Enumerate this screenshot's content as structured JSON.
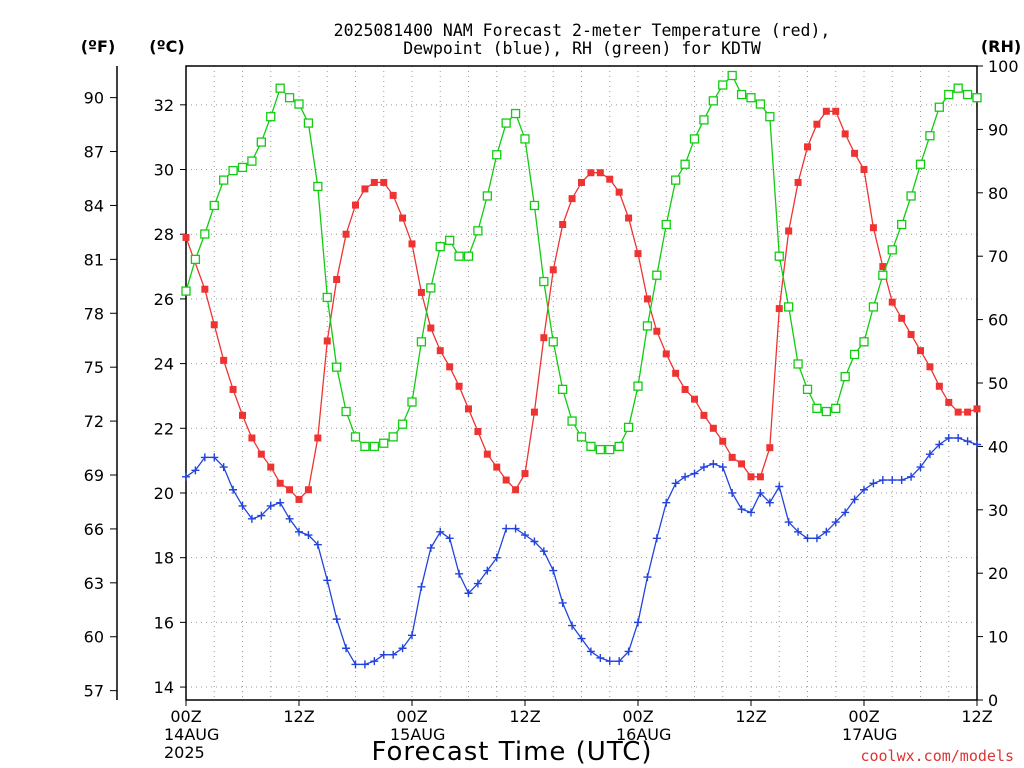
{
  "chart_data": {
    "type": "line",
    "title": "2025081400 NAM Forecast 2-meter Temperature (red),",
    "subtitle": "Dewpoint (blue), RH (green) for KDTW",
    "xlabel": "Forecast Time (UTC)",
    "watermark": "coolwx.com/models",
    "axis_units": {
      "f": "(ºF)",
      "c": "(ºC)",
      "rh": "(RH)"
    },
    "x_hours_range": [
      0,
      84
    ],
    "y_c_range": [
      13.6,
      33.2
    ],
    "y_rh_range": [
      0,
      100
    ],
    "grid": true,
    "x_ticks": [
      {
        "h": 0,
        "labels": [
          "00Z",
          "14AUG",
          "2025"
        ]
      },
      {
        "h": 12,
        "labels": [
          "12Z"
        ]
      },
      {
        "h": 24,
        "labels": [
          "00Z",
          "15AUG"
        ]
      },
      {
        "h": 36,
        "labels": [
          "12Z"
        ]
      },
      {
        "h": 48,
        "labels": [
          "00Z",
          "16AUG"
        ]
      },
      {
        "h": 60,
        "labels": [
          "12Z"
        ]
      },
      {
        "h": 72,
        "labels": [
          "00Z",
          "17AUG"
        ]
      },
      {
        "h": 84,
        "labels": [
          "12Z"
        ]
      }
    ],
    "c_ticks": [
      "14",
      "16",
      "18",
      "20",
      "22",
      "24",
      "26",
      "28",
      "30",
      "32"
    ],
    "f_ticks": [
      "57",
      "60",
      "63",
      "66",
      "69",
      "72",
      "75",
      "78",
      "81",
      "84",
      "87",
      "90"
    ],
    "rh_ticks": [
      "0",
      "10",
      "20",
      "30",
      "40",
      "50",
      "60",
      "70",
      "80",
      "90",
      "100"
    ],
    "series": [
      {
        "name": "Temperature",
        "unit": "C",
        "color": "#ee3333",
        "marker": "filled-square",
        "points": [
          [
            0,
            27.9
          ],
          [
            2,
            26.3
          ],
          [
            3,
            25.2
          ],
          [
            4,
            24.1
          ],
          [
            5,
            23.2
          ],
          [
            6,
            22.4
          ],
          [
            7,
            21.7
          ],
          [
            8,
            21.2
          ],
          [
            9,
            20.8
          ],
          [
            10,
            20.3
          ],
          [
            11,
            20.1
          ],
          [
            12,
            19.8
          ],
          [
            13,
            20.1
          ],
          [
            14,
            21.7
          ],
          [
            15,
            24.7
          ],
          [
            16,
            26.6
          ],
          [
            17,
            28.0
          ],
          [
            18,
            28.9
          ],
          [
            19,
            29.4
          ],
          [
            20,
            29.6
          ],
          [
            21,
            29.6
          ],
          [
            22,
            29.2
          ],
          [
            23,
            28.5
          ],
          [
            24,
            27.7
          ],
          [
            25,
            26.2
          ],
          [
            26,
            25.1
          ],
          [
            27,
            24.4
          ],
          [
            28,
            23.9
          ],
          [
            29,
            23.3
          ],
          [
            30,
            22.6
          ],
          [
            31,
            21.9
          ],
          [
            32,
            21.2
          ],
          [
            33,
            20.8
          ],
          [
            34,
            20.4
          ],
          [
            35,
            20.1
          ],
          [
            36,
            20.6
          ],
          [
            37,
            22.5
          ],
          [
            38,
            24.8
          ],
          [
            39,
            26.9
          ],
          [
            40,
            28.3
          ],
          [
            41,
            29.1
          ],
          [
            42,
            29.6
          ],
          [
            43,
            29.9
          ],
          [
            44,
            29.9
          ],
          [
            45,
            29.7
          ],
          [
            46,
            29.3
          ],
          [
            47,
            28.5
          ],
          [
            48,
            27.4
          ],
          [
            49,
            26.0
          ],
          [
            50,
            25.0
          ],
          [
            51,
            24.3
          ],
          [
            52,
            23.7
          ],
          [
            53,
            23.2
          ],
          [
            54,
            22.9
          ],
          [
            55,
            22.4
          ],
          [
            56,
            22.0
          ],
          [
            57,
            21.6
          ],
          [
            58,
            21.1
          ],
          [
            59,
            20.9
          ],
          [
            60,
            20.5
          ],
          [
            61,
            20.5
          ],
          [
            62,
            21.4
          ],
          [
            63,
            25.7
          ],
          [
            64,
            28.1
          ],
          [
            65,
            29.6
          ],
          [
            66,
            30.7
          ],
          [
            67,
            31.4
          ],
          [
            68,
            31.8
          ],
          [
            69,
            31.8
          ],
          [
            70,
            31.1
          ],
          [
            71,
            30.5
          ],
          [
            72,
            30.0
          ],
          [
            73,
            28.2
          ],
          [
            74,
            27.0
          ],
          [
            75,
            25.9
          ],
          [
            76,
            25.4
          ],
          [
            77,
            24.9
          ],
          [
            78,
            24.4
          ],
          [
            79,
            23.9
          ],
          [
            80,
            23.3
          ],
          [
            81,
            22.8
          ],
          [
            82,
            22.5
          ],
          [
            83,
            22.5
          ],
          [
            84,
            22.6
          ]
        ]
      },
      {
        "name": "Dewpoint",
        "unit": "C",
        "color": "#2244dd",
        "marker": "plus",
        "points": [
          [
            0,
            20.5
          ],
          [
            1,
            20.7
          ],
          [
            2,
            21.1
          ],
          [
            3,
            21.1
          ],
          [
            4,
            20.8
          ],
          [
            5,
            20.1
          ],
          [
            6,
            19.6
          ],
          [
            7,
            19.2
          ],
          [
            8,
            19.3
          ],
          [
            9,
            19.6
          ],
          [
            10,
            19.7
          ],
          [
            11,
            19.2
          ],
          [
            12,
            18.8
          ],
          [
            13,
            18.7
          ],
          [
            14,
            18.4
          ],
          [
            15,
            17.3
          ],
          [
            16,
            16.1
          ],
          [
            17,
            15.2
          ],
          [
            18,
            14.7
          ],
          [
            19,
            14.7
          ],
          [
            20,
            14.8
          ],
          [
            21,
            15.0
          ],
          [
            22,
            15.0
          ],
          [
            23,
            15.2
          ],
          [
            24,
            15.6
          ],
          [
            25,
            17.1
          ],
          [
            26,
            18.3
          ],
          [
            27,
            18.8
          ],
          [
            28,
            18.6
          ],
          [
            29,
            17.5
          ],
          [
            30,
            16.9
          ],
          [
            31,
            17.2
          ],
          [
            32,
            17.6
          ],
          [
            33,
            18.0
          ],
          [
            34,
            18.9
          ],
          [
            35,
            18.9
          ],
          [
            36,
            18.7
          ],
          [
            37,
            18.5
          ],
          [
            38,
            18.2
          ],
          [
            39,
            17.6
          ],
          [
            40,
            16.6
          ],
          [
            41,
            15.9
          ],
          [
            42,
            15.5
          ],
          [
            43,
            15.1
          ],
          [
            44,
            14.9
          ],
          [
            45,
            14.8
          ],
          [
            46,
            14.8
          ],
          [
            47,
            15.1
          ],
          [
            48,
            16.0
          ],
          [
            49,
            17.4
          ],
          [
            50,
            18.6
          ],
          [
            51,
            19.7
          ],
          [
            52,
            20.3
          ],
          [
            53,
            20.5
          ],
          [
            54,
            20.6
          ],
          [
            55,
            20.8
          ],
          [
            56,
            20.9
          ],
          [
            57,
            20.8
          ],
          [
            58,
            20.0
          ],
          [
            59,
            19.5
          ],
          [
            60,
            19.4
          ],
          [
            61,
            20.0
          ],
          [
            62,
            19.7
          ],
          [
            63,
            20.2
          ],
          [
            64,
            19.1
          ],
          [
            65,
            18.8
          ],
          [
            66,
            18.6
          ],
          [
            67,
            18.6
          ],
          [
            68,
            18.8
          ],
          [
            69,
            19.1
          ],
          [
            70,
            19.4
          ],
          [
            71,
            19.8
          ],
          [
            72,
            20.1
          ],
          [
            73,
            20.3
          ],
          [
            74,
            20.4
          ],
          [
            75,
            20.4
          ],
          [
            76,
            20.4
          ],
          [
            77,
            20.5
          ],
          [
            78,
            20.8
          ],
          [
            79,
            21.2
          ],
          [
            80,
            21.5
          ],
          [
            81,
            21.7
          ],
          [
            82,
            21.7
          ],
          [
            83,
            21.6
          ],
          [
            84,
            21.5
          ]
        ]
      },
      {
        "name": "RH",
        "unit": "%",
        "color": "#11cc11",
        "marker": "open-square",
        "points": [
          [
            0,
            64.5
          ],
          [
            1,
            69.5
          ],
          [
            2,
            73.5
          ],
          [
            3,
            78
          ],
          [
            4,
            82
          ],
          [
            5,
            83.5
          ],
          [
            6,
            84
          ],
          [
            7,
            85
          ],
          [
            8,
            88
          ],
          [
            9,
            92
          ],
          [
            10,
            96.5
          ],
          [
            11,
            95
          ],
          [
            12,
            94
          ],
          [
            13,
            91
          ],
          [
            14,
            81
          ],
          [
            15,
            63.5
          ],
          [
            16,
            52.5
          ],
          [
            17,
            45.5
          ],
          [
            18,
            41.5
          ],
          [
            19,
            40
          ],
          [
            20,
            40
          ],
          [
            21,
            40.5
          ],
          [
            22,
            41.5
          ],
          [
            23,
            43.5
          ],
          [
            24,
            47
          ],
          [
            25,
            56.5
          ],
          [
            26,
            65
          ],
          [
            27,
            71.5
          ],
          [
            28,
            72.5
          ],
          [
            29,
            70
          ],
          [
            30,
            70
          ],
          [
            31,
            74
          ],
          [
            32,
            79.5
          ],
          [
            33,
            86
          ],
          [
            34,
            91
          ],
          [
            35,
            92.5
          ],
          [
            36,
            88.5
          ],
          [
            37,
            78
          ],
          [
            38,
            66
          ],
          [
            39,
            56.5
          ],
          [
            40,
            49
          ],
          [
            41,
            44
          ],
          [
            42,
            41.5
          ],
          [
            43,
            40
          ],
          [
            44,
            39.5
          ],
          [
            45,
            39.5
          ],
          [
            46,
            40
          ],
          [
            47,
            43
          ],
          [
            48,
            49.5
          ],
          [
            49,
            59
          ],
          [
            50,
            67
          ],
          [
            51,
            75
          ],
          [
            52,
            82
          ],
          [
            53,
            84.5
          ],
          [
            54,
            88.5
          ],
          [
            55,
            91.5
          ],
          [
            56,
            94.5
          ],
          [
            57,
            97
          ],
          [
            58,
            98.5
          ],
          [
            59,
            95.5
          ],
          [
            60,
            95
          ],
          [
            61,
            94
          ],
          [
            62,
            92
          ],
          [
            63,
            70
          ],
          [
            64,
            62
          ],
          [
            65,
            53
          ],
          [
            66,
            49
          ],
          [
            67,
            46
          ],
          [
            68,
            45.5
          ],
          [
            69,
            46
          ],
          [
            70,
            51
          ],
          [
            71,
            54.5
          ],
          [
            72,
            56.5
          ],
          [
            73,
            62
          ],
          [
            74,
            67
          ],
          [
            75,
            71
          ],
          [
            76,
            75
          ],
          [
            77,
            79.5
          ],
          [
            78,
            84.5
          ],
          [
            79,
            89
          ],
          [
            80,
            93.5
          ],
          [
            81,
            95.5
          ],
          [
            82,
            96.5
          ],
          [
            83,
            95.5
          ],
          [
            84,
            95
          ]
        ]
      }
    ]
  }
}
